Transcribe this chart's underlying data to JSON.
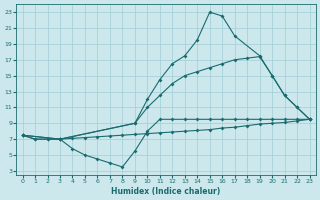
{
  "bg_color": "#cce8ed",
  "grid_color": "#a0cdd4",
  "line_color": "#1a6b6e",
  "xlabel": "Humidex (Indice chaleur)",
  "xlim": [
    -0.5,
    23.5
  ],
  "ylim": [
    2.5,
    24.0
  ],
  "yticks": [
    3,
    5,
    7,
    9,
    11,
    13,
    15,
    17,
    19,
    21,
    23
  ],
  "xticks": [
    0,
    1,
    2,
    3,
    4,
    5,
    6,
    7,
    8,
    9,
    10,
    11,
    12,
    13,
    14,
    15,
    16,
    17,
    18,
    19,
    20,
    21,
    22,
    23
  ],
  "curves": [
    {
      "x": [
        0,
        1,
        2,
        3,
        4,
        5,
        6,
        7,
        8,
        9,
        10,
        11,
        12,
        13,
        14,
        15,
        16,
        17,
        18,
        19,
        20,
        21,
        22,
        23
      ],
      "y": [
        7.5,
        7.0,
        7.0,
        7.0,
        5.8,
        5.0,
        4.5,
        4.0,
        3.5,
        5.5,
        8.0,
        9.5,
        9.5,
        9.5,
        9.5,
        9.5,
        9.5,
        9.5,
        9.5,
        9.5,
        9.5,
        9.5,
        9.5,
        9.5
      ]
    },
    {
      "x": [
        0,
        1,
        2,
        3,
        4,
        5,
        6,
        7,
        8,
        9,
        10,
        11,
        12,
        13,
        14,
        15,
        16,
        17,
        18,
        19,
        20,
        21,
        22,
        23
      ],
      "y": [
        7.5,
        7.0,
        7.0,
        7.0,
        7.1,
        7.2,
        7.3,
        7.4,
        7.5,
        7.6,
        7.7,
        7.8,
        7.9,
        8.0,
        8.1,
        8.2,
        8.4,
        8.5,
        8.7,
        8.9,
        9.0,
        9.1,
        9.3,
        9.5
      ]
    },
    {
      "x": [
        0,
        3,
        9,
        10,
        11,
        12,
        13,
        14,
        15,
        16,
        17,
        18,
        19,
        20,
        21,
        22,
        23
      ],
      "y": [
        7.5,
        7.0,
        9.0,
        11.0,
        12.5,
        14.0,
        15.0,
        15.5,
        16.0,
        16.5,
        17.0,
        17.2,
        17.4,
        15.0,
        12.5,
        11.0,
        9.5
      ]
    },
    {
      "x": [
        0,
        3,
        9,
        10,
        11,
        12,
        13,
        14,
        15,
        16,
        17,
        19,
        20,
        21,
        22,
        23
      ],
      "y": [
        7.5,
        7.0,
        9.0,
        12.0,
        14.5,
        16.5,
        17.5,
        19.5,
        23.0,
        22.5,
        20.0,
        17.5,
        15.0,
        12.5,
        11.0,
        9.5
      ]
    }
  ]
}
